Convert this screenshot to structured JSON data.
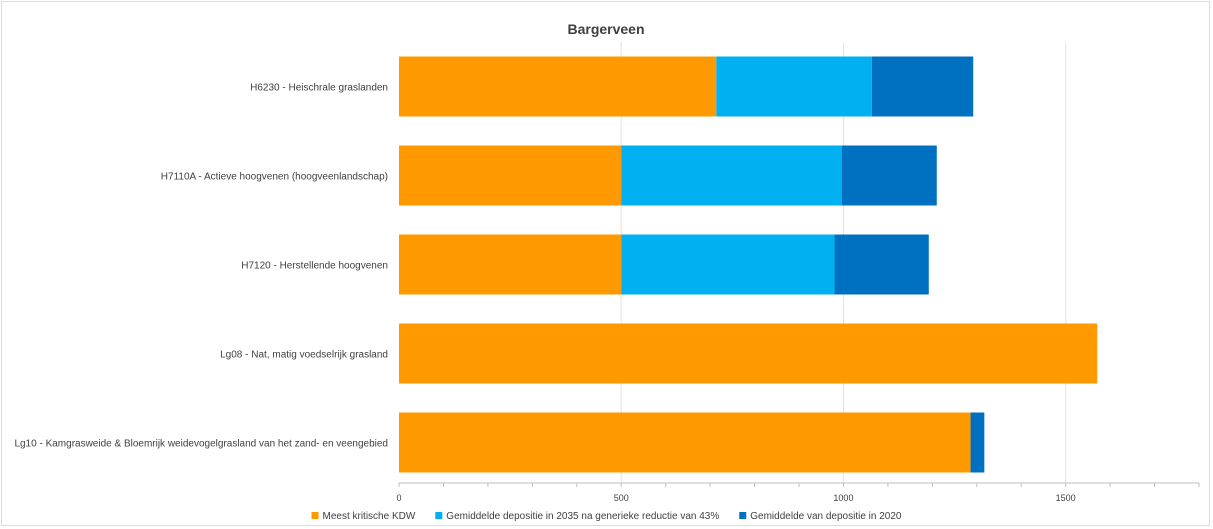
{
  "chart_data": {
    "type": "bar",
    "orientation": "horizontal",
    "stacked": true,
    "title": "Bargerveen",
    "xlabel": "",
    "ylabel": "",
    "xlim": [
      0,
      1800
    ],
    "x_ticks": [
      0,
      500,
      1000,
      1500
    ],
    "grid": true,
    "legend_position": "bottom",
    "categories": [
      "H6230 - Heischrale graslanden",
      "H7110A - Actieve hoogvenen (hoogveenlandschap)",
      "H7120 - Herstellende hoogvenen",
      "Lg08 - Nat, matig voedselrijk grasland",
      "Lg10 - Kamgrasweide & Bloemrijk weidevogelgrasland van het zand- en veengebied"
    ],
    "series": [
      {
        "name": "Meest kritische KDW",
        "color": "#ff9900",
        "values": [
          714,
          500,
          500,
          1571,
          1286
        ]
      },
      {
        "name": "Gemiddelde depositie in 2035 na generieke reductie van 43%",
        "color": "#00b0f0",
        "values": [
          350,
          496,
          480,
          0,
          0
        ]
      },
      {
        "name": "Gemiddelde van depositie in 2020",
        "color": "#0070c0",
        "values": [
          228,
          214,
          212,
          0,
          31
        ]
      }
    ]
  }
}
